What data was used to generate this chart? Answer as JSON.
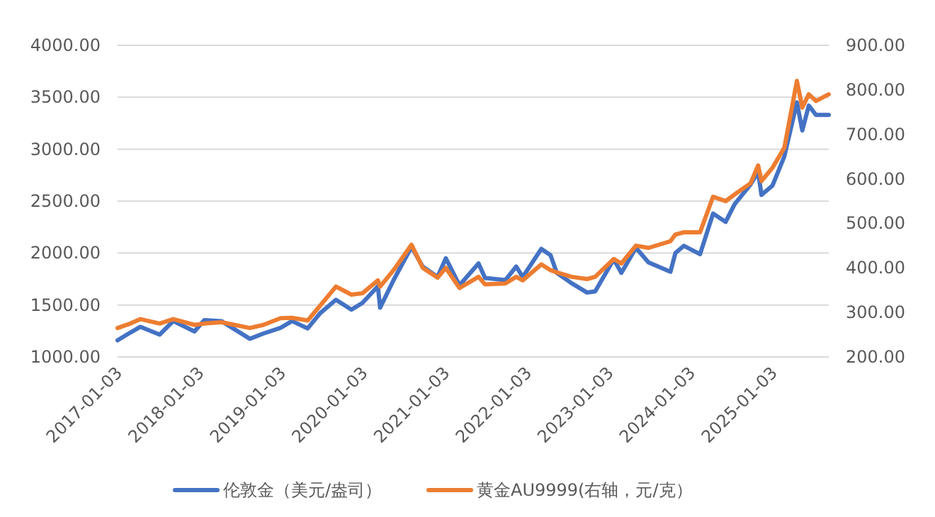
{
  "chart_data": {
    "type": "line",
    "xlim": [
      "2017-01-03",
      "2025-09-10"
    ],
    "xticks": [
      "2017-01-03",
      "2018-01-03",
      "2019-01-03",
      "2020-01-03",
      "2021-01-03",
      "2022-01-03",
      "2023-01-03",
      "2024-01-03",
      "2025-01-03"
    ],
    "ylim": [
      1000,
      4000
    ],
    "yticks": [
      {
        "value": 1000,
        "label": "1000.00"
      },
      {
        "value": 1500,
        "label": "1500.00"
      },
      {
        "value": 2000,
        "label": "2000.00"
      },
      {
        "value": 2500,
        "label": "2500.00"
      },
      {
        "value": 3000,
        "label": "3000.00"
      },
      {
        "value": 3500,
        "label": "3500.00"
      },
      {
        "value": 4000,
        "label": "4000.00"
      }
    ],
    "y2lim": [
      200,
      900
    ],
    "y2ticks": [
      {
        "value": 200,
        "label": "200.00"
      },
      {
        "value": 300,
        "label": "300.00"
      },
      {
        "value": 400,
        "label": "400.00"
      },
      {
        "value": 500,
        "label": "500.00"
      },
      {
        "value": 600,
        "label": "600.00"
      },
      {
        "value": 700,
        "label": "700.00"
      },
      {
        "value": 800,
        "label": "800.00"
      },
      {
        "value": 900,
        "label": "900.00"
      }
    ],
    "grid": "y",
    "legend": "bottom",
    "line_style": "solid",
    "marker": "none",
    "series": [
      {
        "name": "伦敦金（美元/盎司）",
        "color": "#4472c4",
        "x": [
          "2017-01-03",
          "2017-03-01",
          "2017-04-15",
          "2017-07-10",
          "2017-09-08",
          "2017-12-12",
          "2018-01-25",
          "2018-04-11",
          "2018-08-16",
          "2018-10-15",
          "2018-12-31",
          "2019-02-20",
          "2019-05-01",
          "2019-06-25",
          "2019-09-04",
          "2019-11-12",
          "2019-12-31",
          "2020-03-09",
          "2020-03-19",
          "2020-05-18",
          "2020-08-06",
          "2020-09-25",
          "2020-11-30",
          "2021-01-06",
          "2021-03-08",
          "2021-06-01",
          "2021-06-30",
          "2021-09-29",
          "2021-11-16",
          "2021-12-15",
          "2022-03-08",
          "2022-04-18",
          "2022-05-16",
          "2022-07-21",
          "2022-09-28",
          "2022-11-03",
          "2023-01-25",
          "2023-02-28",
          "2023-05-04",
          "2023-06-29",
          "2023-10-05",
          "2023-10-27",
          "2023-12-04",
          "2024-02-14",
          "2024-04-12",
          "2024-06-07",
          "2024-07-17",
          "2024-09-26",
          "2024-10-30",
          "2024-11-14",
          "2025-01-02",
          "2025-02-24",
          "2025-04-21",
          "2025-05-15",
          "2025-06-13",
          "2025-07-15",
          "2025-09-10"
        ],
        "values": [
          1160,
          1235,
          1290,
          1215,
          1345,
          1245,
          1355,
          1345,
          1175,
          1225,
          1280,
          1345,
          1275,
          1420,
          1550,
          1455,
          1520,
          1680,
          1475,
          1740,
          2060,
          1870,
          1770,
          1950,
          1690,
          1900,
          1760,
          1740,
          1870,
          1770,
          2040,
          1980,
          1810,
          1710,
          1620,
          1630,
          1940,
          1810,
          2050,
          1910,
          1820,
          2000,
          2070,
          1990,
          2380,
          2300,
          2470,
          2660,
          2780,
          2560,
          2650,
          2930,
          3450,
          3180,
          3420,
          3330,
          3330
        ]
      },
      {
        "name": "黄金AU9999(右轴，元/克）",
        "color": "#ed7d31",
        "axis": "y2",
        "x": [
          "2017-01-03",
          "2017-03-01",
          "2017-04-15",
          "2017-07-10",
          "2017-09-08",
          "2017-12-12",
          "2018-01-25",
          "2018-04-11",
          "2018-08-16",
          "2018-10-15",
          "2018-12-31",
          "2019-02-20",
          "2019-05-01",
          "2019-06-25",
          "2019-09-04",
          "2019-11-12",
          "2019-12-31",
          "2020-03-09",
          "2020-03-19",
          "2020-05-18",
          "2020-08-06",
          "2020-09-25",
          "2020-11-30",
          "2021-01-06",
          "2021-03-08",
          "2021-06-01",
          "2021-06-30",
          "2021-09-29",
          "2021-11-16",
          "2021-12-15",
          "2022-03-08",
          "2022-04-18",
          "2022-05-16",
          "2022-07-21",
          "2022-09-28",
          "2022-11-03",
          "2023-01-25",
          "2023-02-28",
          "2023-05-04",
          "2023-06-29",
          "2023-10-05",
          "2023-10-27",
          "2023-12-04",
          "2024-02-14",
          "2024-04-12",
          "2024-06-07",
          "2024-07-17",
          "2024-09-26",
          "2024-10-30",
          "2024-11-14",
          "2025-01-02",
          "2025-02-24",
          "2025-04-21",
          "2025-05-15",
          "2025-06-13",
          "2025-07-15",
          "2025-09-10"
        ],
        "values": [
          265,
          275,
          285,
          275,
          285,
          272,
          275,
          278,
          265,
          272,
          287,
          288,
          282,
          315,
          358,
          340,
          343,
          372,
          358,
          395,
          452,
          400,
          378,
          400,
          355,
          380,
          363,
          365,
          380,
          372,
          408,
          395,
          390,
          380,
          375,
          380,
          420,
          410,
          450,
          445,
          460,
          475,
          480,
          480,
          560,
          550,
          565,
          590,
          630,
          595,
          625,
          670,
          820,
          760,
          790,
          775,
          790
        ]
      }
    ]
  }
}
